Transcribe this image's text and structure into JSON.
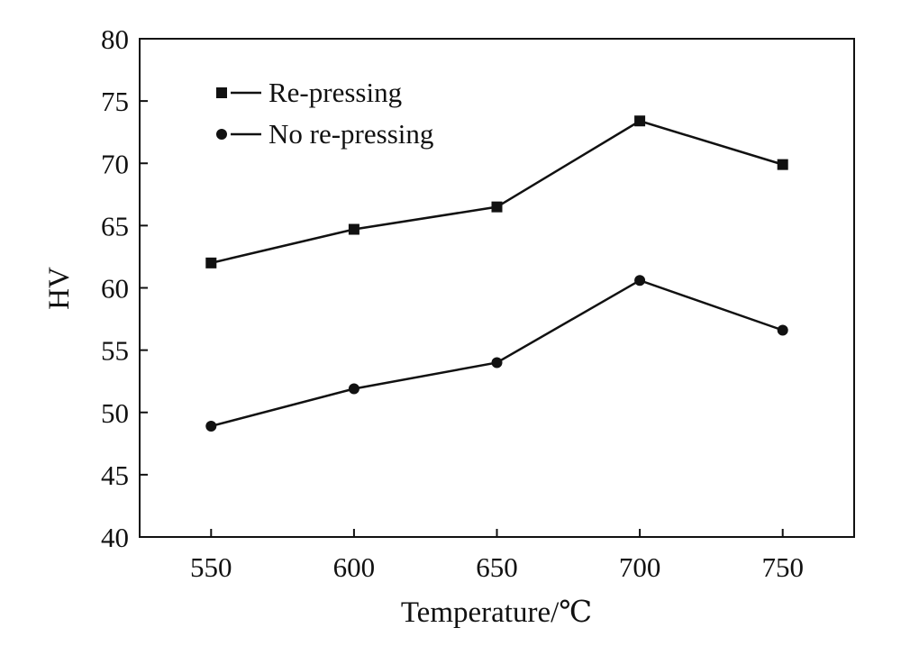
{
  "chart_data": {
    "type": "line",
    "title": "",
    "xlabel": "Temperature/℃",
    "ylabel": "HV",
    "x": [
      550,
      600,
      650,
      700,
      750
    ],
    "xlim": [
      525,
      775
    ],
    "ylim": [
      40,
      80
    ],
    "xticks": [
      550,
      600,
      650,
      700,
      750
    ],
    "yticks": [
      40,
      45,
      50,
      55,
      60,
      65,
      70,
      75,
      80
    ],
    "grid": false,
    "legend_position": "top-left",
    "series": [
      {
        "name": "Re-pressing",
        "marker": "square",
        "color": "#111111",
        "values": [
          62.0,
          64.7,
          66.5,
          73.4,
          69.9
        ]
      },
      {
        "name": "No re-pressing",
        "marker": "circle",
        "color": "#111111",
        "values": [
          48.9,
          51.9,
          54.0,
          60.6,
          56.6
        ]
      }
    ]
  }
}
